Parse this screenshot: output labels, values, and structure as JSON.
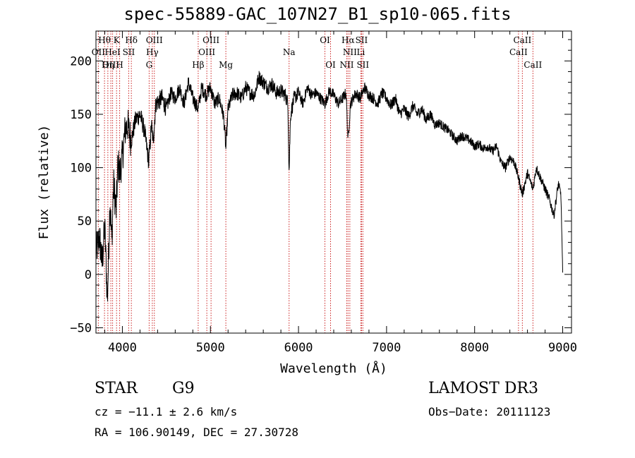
{
  "chart_data": {
    "type": "line",
    "title": "spec-55889-GAC_107N27_B1_sp10-065.fits",
    "xlabel": "Wavelength (Å)",
    "ylabel": "Flux (relative)",
    "xlim": [
      3700,
      9100
    ],
    "ylim": [
      -55,
      228
    ],
    "xticks": [
      4000,
      5000,
      6000,
      7000,
      8000,
      9000
    ],
    "yticks": [
      -50,
      0,
      50,
      100,
      150,
      200
    ],
    "grid": false,
    "series": [
      {
        "name": "flux",
        "x": [
          3700,
          3740,
          3770,
          3800,
          3830,
          3860,
          3880,
          3900,
          3930,
          3950,
          3970,
          4000,
          4030,
          4060,
          4100,
          4150,
          4200,
          4250,
          4300,
          4330,
          4350,
          4380,
          4450,
          4500,
          4550,
          4600,
          4650,
          4700,
          4750,
          4800,
          4861,
          4900,
          4950,
          5000,
          5050,
          5100,
          5150,
          5175,
          5200,
          5250,
          5300,
          5350,
          5400,
          5450,
          5500,
          5550,
          5600,
          5650,
          5700,
          5750,
          5800,
          5850,
          5880,
          5893,
          5910,
          5950,
          6000,
          6050,
          6100,
          6150,
          6200,
          6250,
          6300,
          6350,
          6400,
          6450,
          6500,
          6540,
          6563,
          6590,
          6620,
          6650,
          6700,
          6750,
          6800,
          6850,
          6900,
          6950,
          7000,
          7050,
          7100,
          7150,
          7200,
          7250,
          7300,
          7350,
          7400,
          7450,
          7500,
          7550,
          7600,
          7650,
          7700,
          7750,
          7800,
          7850,
          7900,
          7950,
          8000,
          8050,
          8100,
          8150,
          8200,
          8250,
          8300,
          8350,
          8400,
          8450,
          8500,
          8542,
          8600,
          8662,
          8700,
          8750,
          8800,
          8850,
          8900,
          8950,
          8980,
          9000
        ],
        "values": [
          20,
          35,
          10,
          45,
          -25,
          70,
          30,
          85,
          60,
          105,
          95,
          110,
          135,
          140,
          125,
          145,
          150,
          135,
          105,
          140,
          125,
          160,
          165,
          155,
          170,
          165,
          175,
          160,
          180,
          165,
          155,
          175,
          168,
          175,
          160,
          165,
          148,
          118,
          155,
          168,
          170,
          165,
          175,
          170,
          168,
          185,
          180,
          175,
          178,
          170,
          172,
          168,
          160,
          95,
          150,
          165,
          170,
          160,
          175,
          168,
          170,
          165,
          160,
          172,
          168,
          160,
          165,
          170,
          125,
          160,
          165,
          170,
          165,
          175,
          168,
          165,
          160,
          170,
          165,
          158,
          165,
          150,
          155,
          148,
          158,
          150,
          155,
          145,
          150,
          140,
          142,
          138,
          135,
          130,
          125,
          130,
          128,
          125,
          120,
          122,
          118,
          120,
          115,
          120,
          105,
          100,
          110,
          105,
          90,
          75,
          95,
          80,
          100,
          90,
          80,
          70,
          55,
          85,
          75,
          0
        ]
      }
    ],
    "line_labels": [
      {
        "label": "Hθ",
        "x": 3797,
        "tier": 1
      },
      {
        "label": "OII",
        "x": 3727,
        "tier": 2
      },
      {
        "label": "OIII",
        "x": 3869,
        "tier": 3
      },
      {
        "label": "K",
        "x": 3934,
        "tier": 1
      },
      {
        "label": "HeI",
        "x": 3889,
        "tier": 2
      },
      {
        "label": "Hη",
        "x": 3835,
        "tier": 3
      },
      {
        "label": "H",
        "x": 3969,
        "tier": 3
      },
      {
        "label": "Hδ",
        "x": 4102,
        "tier": 1
      },
      {
        "label": "SII",
        "x": 4072,
        "tier": 2
      },
      {
        "label": "OIII",
        "x": 4363,
        "tier": 1
      },
      {
        "label": "Hγ",
        "x": 4340,
        "tier": 2
      },
      {
        "label": "G",
        "x": 4304,
        "tier": 3
      },
      {
        "label": "OIII",
        "x": 5007,
        "tier": 1
      },
      {
        "label": "OIII",
        "x": 4959,
        "tier": 2
      },
      {
        "label": "Hβ",
        "x": 4861,
        "tier": 3
      },
      {
        "label": "Mg",
        "x": 5175,
        "tier": 3
      },
      {
        "label": "Na",
        "x": 5893,
        "tier": 2
      },
      {
        "label": "OI",
        "x": 6300,
        "tier": 1
      },
      {
        "label": "OI",
        "x": 6364,
        "tier": 3
      },
      {
        "label": "Hα",
        "x": 6563,
        "tier": 1
      },
      {
        "label": "SII",
        "x": 6716,
        "tier": 1
      },
      {
        "label": "NII",
        "x": 6583,
        "tier": 2
      },
      {
        "label": "Li",
        "x": 6708,
        "tier": 2
      },
      {
        "label": "NII",
        "x": 6548,
        "tier": 3
      },
      {
        "label": "SII",
        "x": 6731,
        "tier": 3
      },
      {
        "label": "CaII",
        "x": 8542,
        "tier": 1
      },
      {
        "label": "CaII",
        "x": 8498,
        "tier": 2
      },
      {
        "label": "CaII",
        "x": 8662,
        "tier": 3
      }
    ]
  },
  "info": {
    "class": "STAR",
    "subclass": "G9",
    "survey": "LAMOST DR3",
    "cz": "cz = −11.1 ± 2.6 km/s",
    "obs_date": "Obs−Date: 20111123",
    "radec": "RA = 106.90149, DEC =  27.30728"
  },
  "colors": {
    "line_marker": "#cc2222",
    "trace": "#000000"
  }
}
